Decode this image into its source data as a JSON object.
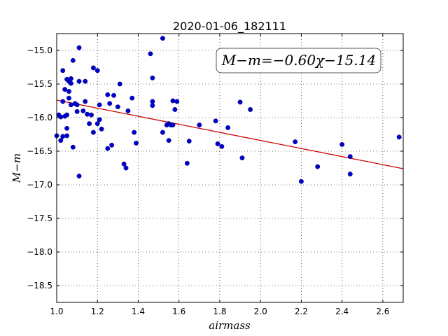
{
  "chart_data": {
    "type": "scatter",
    "title": "2020-01-06_182111",
    "xlabel": "airmass",
    "ylabel": "M−m",
    "annotation": "M−m=−0.60χ−15.14",
    "xlim": [
      1.0,
      2.7
    ],
    "ylim": [
      -18.75,
      -14.75
    ],
    "y_inverted": true,
    "xticks": [
      "1.0",
      "1.2",
      "1.4",
      "1.6",
      "1.8",
      "2.0",
      "2.2",
      "2.4",
      "2.6"
    ],
    "yticks": [
      "−15.0",
      "−15.5",
      "−16.0",
      "−16.5",
      "−17.0",
      "−17.5",
      "−18.0",
      "−18.5"
    ],
    "grid": true,
    "colors": {
      "points": "#0000cc",
      "fit": "#cc0000"
    },
    "fit": {
      "slope": -0.6,
      "intercept": -15.14
    },
    "points": [
      {
        "x": 1.0,
        "y": -16.27
      },
      {
        "x": 1.01,
        "y": -15.96
      },
      {
        "x": 1.02,
        "y": -15.99
      },
      {
        "x": 1.02,
        "y": -16.34
      },
      {
        "x": 1.03,
        "y": -16.28
      },
      {
        "x": 1.03,
        "y": -15.3
      },
      {
        "x": 1.03,
        "y": -15.76
      },
      {
        "x": 1.04,
        "y": -15.58
      },
      {
        "x": 1.04,
        "y": -15.98
      },
      {
        "x": 1.05,
        "y": -16.16
      },
      {
        "x": 1.05,
        "y": -15.43
      },
      {
        "x": 1.05,
        "y": -15.96
      },
      {
        "x": 1.05,
        "y": -16.27
      },
      {
        "x": 1.06,
        "y": -15.46
      },
      {
        "x": 1.06,
        "y": -15.61
      },
      {
        "x": 1.06,
        "y": -15.71
      },
      {
        "x": 1.07,
        "y": -15.42
      },
      {
        "x": 1.07,
        "y": -15.49
      },
      {
        "x": 1.07,
        "y": -15.81
      },
      {
        "x": 1.08,
        "y": -15.15
      },
      {
        "x": 1.08,
        "y": -16.44
      },
      {
        "x": 1.09,
        "y": -15.79
      },
      {
        "x": 1.1,
        "y": -15.91
      },
      {
        "x": 1.1,
        "y": -15.81
      },
      {
        "x": 1.11,
        "y": -14.96
      },
      {
        "x": 1.11,
        "y": -15.46
      },
      {
        "x": 1.11,
        "y": -16.87
      },
      {
        "x": 1.13,
        "y": -15.9
      },
      {
        "x": 1.14,
        "y": -15.76
      },
      {
        "x": 1.14,
        "y": -15.46
      },
      {
        "x": 1.15,
        "y": -15.95
      },
      {
        "x": 1.16,
        "y": -16.09
      },
      {
        "x": 1.17,
        "y": -15.96
      },
      {
        "x": 1.18,
        "y": -16.22
      },
      {
        "x": 1.18,
        "y": -15.26
      },
      {
        "x": 1.2,
        "y": -16.09
      },
      {
        "x": 1.2,
        "y": -15.3
      },
      {
        "x": 1.21,
        "y": -16.03
      },
      {
        "x": 1.21,
        "y": -15.81
      },
      {
        "x": 1.22,
        "y": -16.17
      },
      {
        "x": 1.25,
        "y": -15.66
      },
      {
        "x": 1.25,
        "y": -16.46
      },
      {
        "x": 1.26,
        "y": -15.79
      },
      {
        "x": 1.27,
        "y": -16.41
      },
      {
        "x": 1.28,
        "y": -15.67
      },
      {
        "x": 1.3,
        "y": -15.84
      },
      {
        "x": 1.31,
        "y": -15.5
      },
      {
        "x": 1.33,
        "y": -16.69
      },
      {
        "x": 1.34,
        "y": -16.75
      },
      {
        "x": 1.35,
        "y": -15.9
      },
      {
        "x": 1.37,
        "y": -15.71
      },
      {
        "x": 1.38,
        "y": -16.22
      },
      {
        "x": 1.39,
        "y": -16.38
      },
      {
        "x": 1.46,
        "y": -15.05
      },
      {
        "x": 1.47,
        "y": -15.41
      },
      {
        "x": 1.47,
        "y": -15.76
      },
      {
        "x": 1.47,
        "y": -15.82
      },
      {
        "x": 1.52,
        "y": -14.82
      },
      {
        "x": 1.52,
        "y": -16.22
      },
      {
        "x": 1.54,
        "y": -16.11
      },
      {
        "x": 1.55,
        "y": -16.34
      },
      {
        "x": 1.55,
        "y": -16.09
      },
      {
        "x": 1.56,
        "y": -16.11
      },
      {
        "x": 1.57,
        "y": -15.75
      },
      {
        "x": 1.57,
        "y": -16.11
      },
      {
        "x": 1.58,
        "y": -15.88
      },
      {
        "x": 1.59,
        "y": -15.76
      },
      {
        "x": 1.64,
        "y": -16.68
      },
      {
        "x": 1.65,
        "y": -16.35
      },
      {
        "x": 1.7,
        "y": -16.11
      },
      {
        "x": 1.78,
        "y": -16.05
      },
      {
        "x": 1.79,
        "y": -16.39
      },
      {
        "x": 1.81,
        "y": -16.43
      },
      {
        "x": 1.84,
        "y": -16.15
      },
      {
        "x": 1.9,
        "y": -15.77
      },
      {
        "x": 1.91,
        "y": -16.6
      },
      {
        "x": 1.95,
        "y": -15.88
      },
      {
        "x": 2.17,
        "y": -16.36
      },
      {
        "x": 2.2,
        "y": -16.95
      },
      {
        "x": 2.28,
        "y": -16.73
      },
      {
        "x": 2.4,
        "y": -16.4
      },
      {
        "x": 2.44,
        "y": -16.58
      },
      {
        "x": 2.44,
        "y": -16.84
      },
      {
        "x": 2.68,
        "y": -16.29
      }
    ]
  }
}
